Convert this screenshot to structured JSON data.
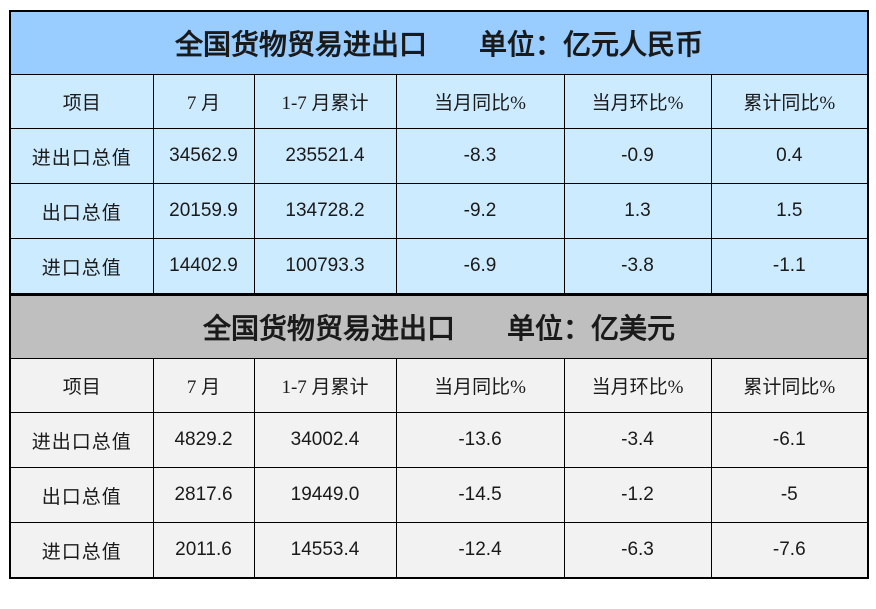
{
  "chart_data": [
    {
      "type": "table",
      "title": "全国货物贸易进出口",
      "unit": "单位：亿元人民币",
      "columns": [
        "项目",
        "7 月",
        "1-7 月累计",
        "当月同比%",
        "当月环比%",
        "累计同比%"
      ],
      "rows": [
        [
          "进出口总值",
          "34562.9",
          "235521.4",
          "-8.3",
          "-0.9",
          "0.4"
        ],
        [
          "出口总值",
          "20159.9",
          "134728.2",
          "-9.2",
          "1.3",
          "1.5"
        ],
        [
          "进口总值",
          "14402.9",
          "100793.3",
          "-6.9",
          "-3.8",
          "-1.1"
        ]
      ],
      "theme": {
        "title_bg": "#99CCFF",
        "cell_bg": "#CDEBFE",
        "border": "#000000",
        "text": "#1A1A1A"
      }
    },
    {
      "type": "table",
      "title": "全国货物贸易进出口",
      "unit": "单位：亿美元",
      "columns": [
        "项目",
        "7 月",
        "1-7 月累计",
        "当月同比%",
        "当月环比%",
        "累计同比%"
      ],
      "rows": [
        [
          "进出口总值",
          "4829.2",
          "34002.4",
          "-13.6",
          "-3.4",
          "-6.1"
        ],
        [
          "出口总值",
          "2817.6",
          "19449.0",
          "-14.5",
          "-1.2",
          "-5"
        ],
        [
          "进口总值",
          "2011.6",
          "14553.4",
          "-12.4",
          "-6.3",
          "-7.6"
        ]
      ],
      "theme": {
        "title_bg": "#BFBFBF",
        "cell_bg": "#F2F2F2",
        "border": "#000000",
        "text": "#1A1A1A"
      }
    }
  ]
}
